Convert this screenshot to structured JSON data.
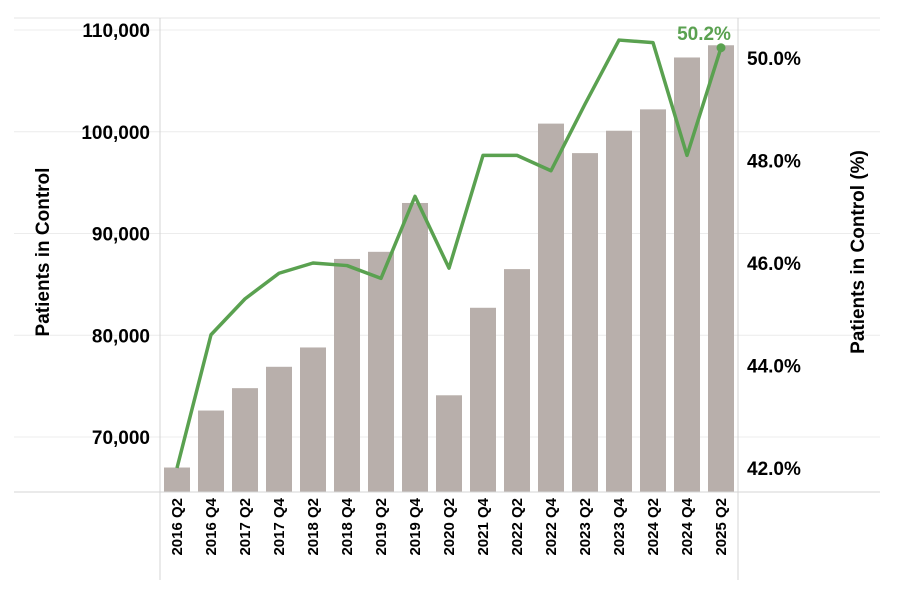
{
  "chart_data": {
    "type": "bar+line",
    "categories": [
      "2016 Q2",
      "2016 Q4",
      "2017 Q2",
      "2017 Q4",
      "2018 Q2",
      "2018 Q4",
      "2019 Q2",
      "2019 Q4",
      "2020 Q2",
      "2021 Q4",
      "2022 Q2",
      "2022 Q4",
      "2023 Q2",
      "2023 Q4",
      "2024 Q2",
      "2024 Q4",
      "2025 Q2"
    ],
    "series": [
      {
        "name": "Patients in Control",
        "type": "bar",
        "axis": "left",
        "color": "#b8afab",
        "values": [
          67000,
          72600,
          74800,
          76900,
          78800,
          87500,
          88200,
          93000,
          74100,
          82700,
          86500,
          100800,
          97900,
          100100,
          102200,
          107300,
          108500
        ]
      },
      {
        "name": "Patients in Control (%)",
        "type": "line",
        "axis": "right",
        "color": "#5aa150",
        "values": [
          42.0,
          44.6,
          45.3,
          45.8,
          46.0,
          45.95,
          45.7,
          47.3,
          45.9,
          48.1,
          48.1,
          47.8,
          49.1,
          50.35,
          50.3,
          48.1,
          50.2
        ]
      }
    ],
    "left_axis": {
      "label": "Patients in Control",
      "ticks": [
        70000,
        80000,
        90000,
        100000,
        110000
      ],
      "tick_labels": [
        "70,000",
        "80,000",
        "90,000",
        "100,000",
        "110,000"
      ],
      "range": [
        65000,
        111000
      ]
    },
    "right_axis": {
      "label": "Patients in Control (%)",
      "ticks": [
        42,
        44,
        46,
        48,
        50
      ],
      "tick_labels": [
        "42.0%",
        "44.0%",
        "46.0%",
        "48.0%",
        "50.0%"
      ],
      "range": [
        41.6,
        50.6
      ]
    },
    "annotation": {
      "text": "50.2%",
      "category": "2025 Q2",
      "color": "#5aa150"
    },
    "grid": true
  }
}
